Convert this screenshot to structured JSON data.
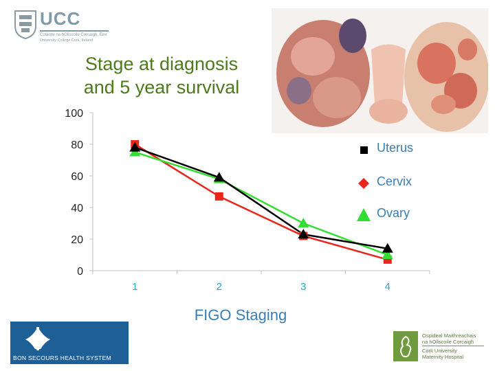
{
  "logos": {
    "ucc_wordmark": "UCC",
    "ucc_irish": "Coláiste na hOllscoile Corcaigh, Éire",
    "ucc_english": "University College Cork, Ireland",
    "bon_secours": "BON SECOURS HEALTH SYSTEM",
    "cumh_irish_line1": "Ospideal Maithreachais",
    "cumh_irish_line2": "na hOllscoile Corcaigh",
    "cumh_english_line1": "Cork University",
    "cumh_english_line2": "Maternity Hospital"
  },
  "slide": {
    "title_line1": "Stage at diagnosis",
    "title_line2": "and 5 year survival"
  },
  "colors": {
    "uterus": "#000000",
    "cervix": "#e8261c",
    "ovary": "#33dd33",
    "title": "#4c7a1c",
    "legend_text": "#3a7db3",
    "x_tick": "#2aa7c9"
  },
  "chart_data": {
    "type": "line",
    "x": [
      "1",
      "2",
      "3",
      "4"
    ],
    "xlabel": "FIGO Staging",
    "ylabel": "",
    "ylim": [
      0,
      100
    ],
    "yticks": [
      0,
      20,
      40,
      60,
      80,
      100
    ],
    "legend_position": "right",
    "series": [
      {
        "name": "Uterus",
        "marker": "triangle",
        "color": "#000000",
        "values": [
          78,
          59,
          23,
          14
        ]
      },
      {
        "name": "Cervix",
        "marker": "square",
        "color": "#e8261c",
        "values": [
          80,
          47,
          22,
          7
        ]
      },
      {
        "name": "Ovary",
        "marker": "triangle",
        "color": "#33dd33",
        "values": [
          75,
          58,
          30,
          10
        ]
      }
    ],
    "legend": [
      {
        "label": "Uterus",
        "marker": "square",
        "color": "#000000"
      },
      {
        "label": "Cervix",
        "marker": "diamond",
        "color": "#e8261c"
      },
      {
        "label": "Ovary",
        "marker": "triangle",
        "color": "#33dd33"
      }
    ]
  }
}
